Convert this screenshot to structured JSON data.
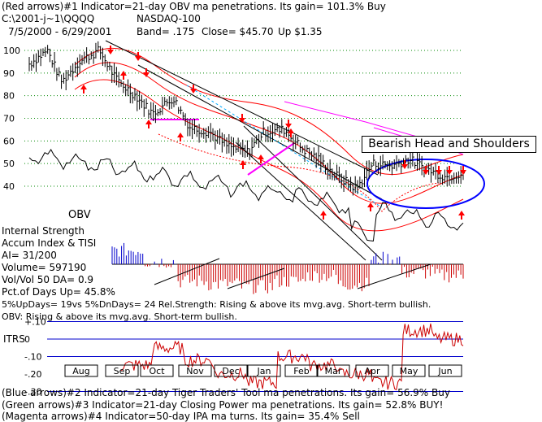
{
  "header": {
    "line1": "(Red arrows)#1 Indicator=21-day OBV ma penetrations. Its gain= 101.3% Buy",
    "path": "C:\\2001-j~1\\QQQQ",
    "index_name": "NASDAQ-100",
    "dates": "7/5/2000 - 6/29/2001",
    "band": "Band= .175",
    "close": "Close= $45.70",
    "up": "Up $1.35"
  },
  "annotations": {
    "callout": "Bearish Head and Shoulders",
    "obv": "OBV"
  },
  "side_info": {
    "internal_strength": "Internal Strength",
    "accum": "Accum Index & TISI",
    "ai": "AI= 31/200",
    "volume": "Volume= 597190",
    "volvol": "Vol/Vol 50 DA= 0.9",
    "pct_up": "Pct.of Days Up= 45.8%",
    "updays": "5%UpDays= 19vs 5%DnDays= 24   Rel.Strength: Rising & above its mvg.avg. Short-term bullish.",
    "obv_status": "OBV: Rising & above its mvg.avg. Short-term bullish."
  },
  "itrs": {
    "label": "ITRS",
    "ticks": [
      "+.10",
      "0",
      "-.10",
      "-.20",
      "-.30"
    ]
  },
  "footer": {
    "line1": "(Blue arrows)#2 Indicator=21-day Tiger Traders' Tool ma penetrations. Its gain= 56.9% Buy",
    "line2": "(Green arrows)#3 Indicator=21-day Closing Power ma penetrations. Its gain= 52.8% BUY!",
    "line3": "(Magenta arrows)#4 Indicator=50-day IPA ma turns. Its gain= 35.4% Sell"
  },
  "colors": {
    "price": "#000000",
    "bands": "#ff0000",
    "ipa": "#ff00ff",
    "callout_ellipse": "#0000ff",
    "accum_pos": "#0000cc",
    "accum_neg": "#cc0000",
    "itrs_line": "#cc0000",
    "grid": "#008800"
  },
  "chart_data": [
    {
      "type": "line",
      "title": "NASDAQ-100",
      "x_axis": "date",
      "categories": [
        "Aug",
        "Sep",
        "Oct",
        "Nov",
        "Dec",
        "Jan",
        "Feb",
        "Mar",
        "Apr",
        "May",
        "Jun"
      ],
      "y_ticks": [
        100,
        90,
        80,
        70,
        60,
        50,
        40
      ],
      "ylim": [
        35,
        105
      ],
      "grid": true,
      "x": [
        "2000-07-05",
        "2000-07-20",
        "2000-08-01",
        "2000-08-15",
        "2000-09-01",
        "2000-09-15",
        "2000-10-01",
        "2000-10-15",
        "2000-11-01",
        "2000-11-15",
        "2000-12-01",
        "2000-12-15",
        "2001-01-02",
        "2001-01-15",
        "2001-02-01",
        "2001-02-15",
        "2001-03-01",
        "2001-03-15",
        "2001-04-02",
        "2001-04-15",
        "2001-05-01",
        "2001-05-15",
        "2001-06-01",
        "2001-06-15",
        "2001-06-29"
      ],
      "series": [
        {
          "name": "",
          "values": [
            94,
            100,
            86,
            95,
            100,
            87,
            80,
            72,
            79,
            66,
            64,
            58,
            55,
            64,
            65,
            57,
            52,
            45,
            39,
            50,
            49,
            52,
            47,
            44,
            46
          ]
        }
      ],
      "annotations": [
        "Bearish Head and Shoulders",
        "OBV"
      ]
    },
    {
      "type": "bar",
      "title": "Accum Index & TISI",
      "categories": [
        "Aug",
        "Sep",
        "Oct",
        "Nov",
        "Dec",
        "Jan",
        "Feb",
        "Mar",
        "Apr",
        "May",
        "Jun"
      ],
      "values": [
        0.25,
        0.05,
        -0.3,
        -0.35,
        -0.4,
        -0.3,
        -0.2,
        -0.35,
        0.1,
        -0.15,
        -0.2
      ]
    },
    {
      "type": "line",
      "title": "ITRS",
      "categories": [
        "Aug",
        "Sep",
        "Oct",
        "Nov",
        "Dec",
        "Jan",
        "Feb",
        "Mar",
        "Apr",
        "May",
        "Jun"
      ],
      "y_ticks": [
        "+.10",
        "0",
        "-.10",
        "-.20",
        "-.30"
      ],
      "ylim": [
        -0.3,
        0.12
      ],
      "values": [
        -0.15,
        -0.05,
        -0.12,
        -0.2,
        -0.25,
        -0.1,
        -0.15,
        -0.2,
        -0.25,
        0.05,
        0.0
      ]
    }
  ]
}
